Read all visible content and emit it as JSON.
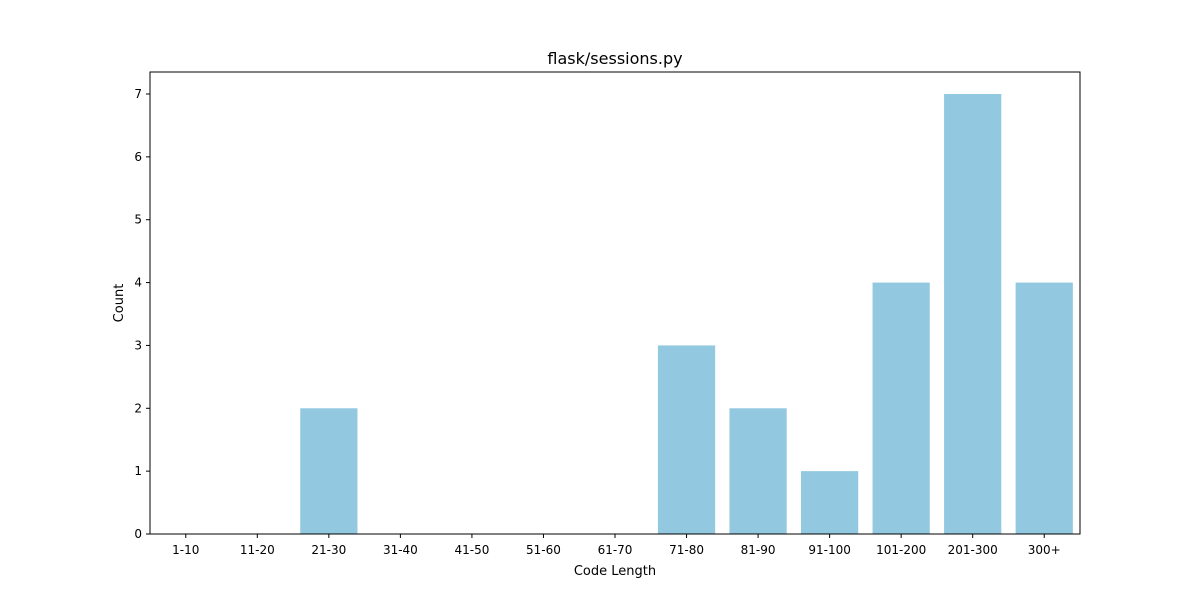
{
  "chart_data": {
    "type": "bar",
    "title": "flask/sessions.py",
    "xlabel": "Code Length",
    "ylabel": "Count",
    "categories": [
      "1-10",
      "11-20",
      "21-30",
      "31-40",
      "41-50",
      "51-60",
      "61-70",
      "71-80",
      "81-90",
      "91-100",
      "101-200",
      "201-300",
      "300+"
    ],
    "values": [
      0,
      0,
      2,
      0,
      0,
      0,
      0,
      3,
      2,
      1,
      4,
      7,
      4
    ],
    "ylim": [
      0,
      7.35
    ],
    "yticks": [
      0,
      1,
      2,
      3,
      4,
      5,
      6,
      7
    ],
    "grid": false,
    "bar_color": "#92c9e0"
  }
}
